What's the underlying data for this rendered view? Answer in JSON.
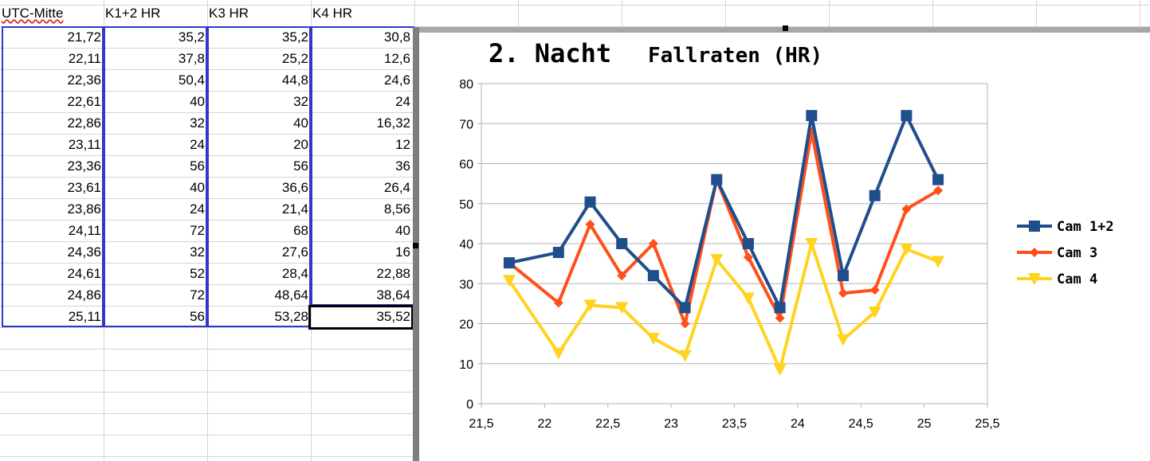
{
  "spreadsheet": {
    "headers": [
      "UTC-Mitte",
      "K1+2 HR",
      "K3 HR",
      "K4 HR"
    ],
    "rows": [
      [
        "21,72",
        "35,2",
        "35,2",
        "30,8"
      ],
      [
        "22,11",
        "37,8",
        "25,2",
        "12,6"
      ],
      [
        "22,36",
        "50,4",
        "44,8",
        "24,6"
      ],
      [
        "22,61",
        "40",
        "32",
        "24"
      ],
      [
        "22,86",
        "32",
        "40",
        "16,32"
      ],
      [
        "23,11",
        "24",
        "20",
        "12"
      ],
      [
        "23,36",
        "56",
        "56",
        "36"
      ],
      [
        "23,61",
        "40",
        "36,6",
        "26,4"
      ],
      [
        "23,86",
        "24",
        "21,4",
        "8,56"
      ],
      [
        "24,11",
        "72",
        "68",
        "40"
      ],
      [
        "24,36",
        "32",
        "27,6",
        "16"
      ],
      [
        "24,61",
        "52",
        "28,4",
        "22,88"
      ],
      [
        "24,86",
        "72",
        "48,64",
        "38,64"
      ],
      [
        "25,11",
        "56",
        "53,28",
        "35,52"
      ]
    ],
    "active_cell_value": "35,52"
  },
  "chart_data": {
    "type": "line",
    "title_part1": "2. Nacht",
    "title_part2": "Fallraten (HR)",
    "x": [
      21.72,
      22.11,
      22.36,
      22.61,
      22.86,
      23.11,
      23.36,
      23.61,
      23.86,
      24.11,
      24.36,
      24.61,
      24.86,
      25.11
    ],
    "series": [
      {
        "name": "Cam 1+2",
        "color": "#1f4e8c",
        "marker": "square",
        "values": [
          35.2,
          37.8,
          50.4,
          40,
          32,
          24,
          56,
          40,
          24,
          72,
          32,
          52,
          72,
          56
        ]
      },
      {
        "name": "Cam 3",
        "color": "#ff4f1a",
        "marker": "diamond",
        "values": [
          35.2,
          25.2,
          44.8,
          32,
          40,
          20,
          56,
          36.6,
          21.4,
          68,
          27.6,
          28.4,
          48.64,
          53.28
        ]
      },
      {
        "name": "Cam 4",
        "color": "#ffd320",
        "marker": "triangle-down",
        "values": [
          30.8,
          12.6,
          24.6,
          24,
          16.32,
          12,
          36,
          26.4,
          8.56,
          40,
          16,
          22.88,
          38.64,
          35.52
        ]
      }
    ],
    "xlim": [
      21.5,
      25.5
    ],
    "ylim": [
      0,
      80
    ],
    "x_ticks": [
      "21,5",
      "22",
      "22,5",
      "23",
      "23,5",
      "24",
      "24,5",
      "25",
      "25,5"
    ],
    "y_ticks": [
      "0",
      "10",
      "20",
      "30",
      "40",
      "50",
      "60",
      "70",
      "80"
    ],
    "grid": "horizontal",
    "legend": "right",
    "xlabel": "",
    "ylabel": ""
  }
}
